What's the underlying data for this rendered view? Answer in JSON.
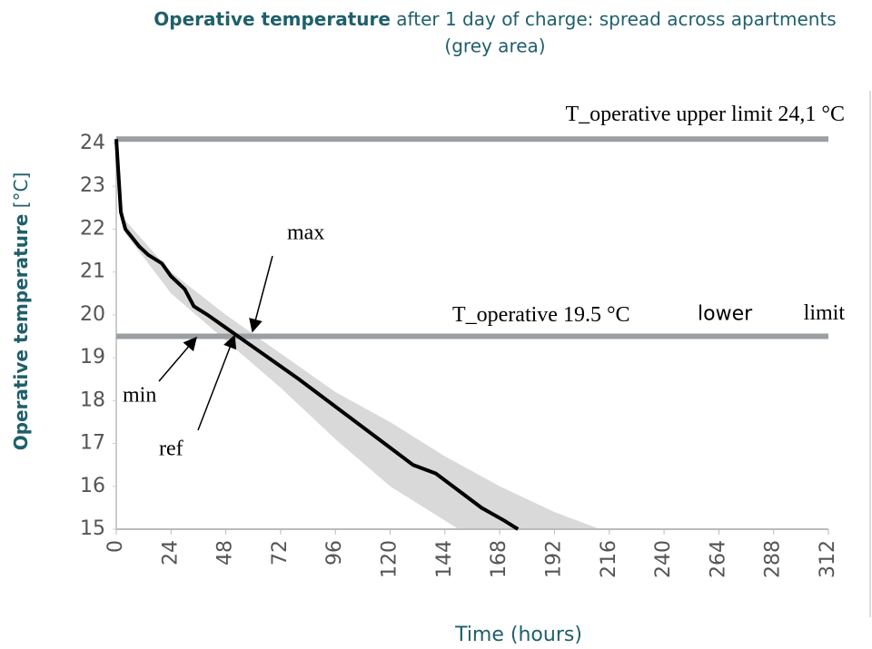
{
  "chart_data": {
    "type": "line",
    "title": {
      "bold": "Operative temperature",
      "rest": "after 1 day of charge: spread across apartments",
      "line2": "(grey area)"
    },
    "y_label": {
      "bold": "Operative temperature",
      "rest": "[°C]"
    },
    "x_label": "Time (hours)",
    "xlim": [
      0,
      312
    ],
    "xticks": [
      0,
      24,
      48,
      72,
      96,
      120,
      144,
      168,
      192,
      216,
      240,
      264,
      288,
      312
    ],
    "ylim": [
      15,
      24
    ],
    "yticks": [
      15,
      16,
      17,
      18,
      19,
      20,
      21,
      22,
      23,
      24
    ],
    "series": [
      {
        "name": "ref",
        "color": "#000000",
        "x": [
          0,
          2,
          4,
          10,
          14,
          20,
          24,
          30,
          34,
          40,
          48,
          56,
          64,
          72,
          80,
          90,
          100,
          110,
          120,
          130,
          140,
          150,
          160,
          170,
          176
        ],
        "values": [
          24.1,
          22.4,
          22.0,
          21.6,
          21.4,
          21.2,
          20.9,
          20.6,
          20.2,
          20.0,
          19.7,
          19.4,
          19.1,
          18.8,
          18.5,
          18.1,
          17.7,
          17.3,
          16.9,
          16.5,
          16.3,
          15.9,
          15.5,
          15.2,
          15.0
        ]
      },
      {
        "name": "max",
        "color": "#d9d9d9",
        "x": [
          4,
          24,
          48,
          72,
          96,
          120,
          144,
          168,
          192,
          212
        ],
        "values": [
          22.2,
          21.0,
          20.0,
          19.1,
          18.2,
          17.5,
          16.7,
          16.0,
          15.4,
          15.0
        ]
      },
      {
        "name": "min",
        "color": "#d9d9d9",
        "x": [
          4,
          24,
          48,
          72,
          96,
          120,
          144,
          150
        ],
        "values": [
          21.9,
          20.5,
          19.4,
          18.3,
          17.1,
          16.0,
          15.2,
          15.0
        ]
      }
    ],
    "limits": [
      {
        "value": 24.1,
        "label": "T_operative upper limit 24,1 °C"
      },
      {
        "value": 19.5,
        "label": "T_operative 19.5 °C",
        "label2": "lower",
        "label3": "limit"
      }
    ]
  }
}
